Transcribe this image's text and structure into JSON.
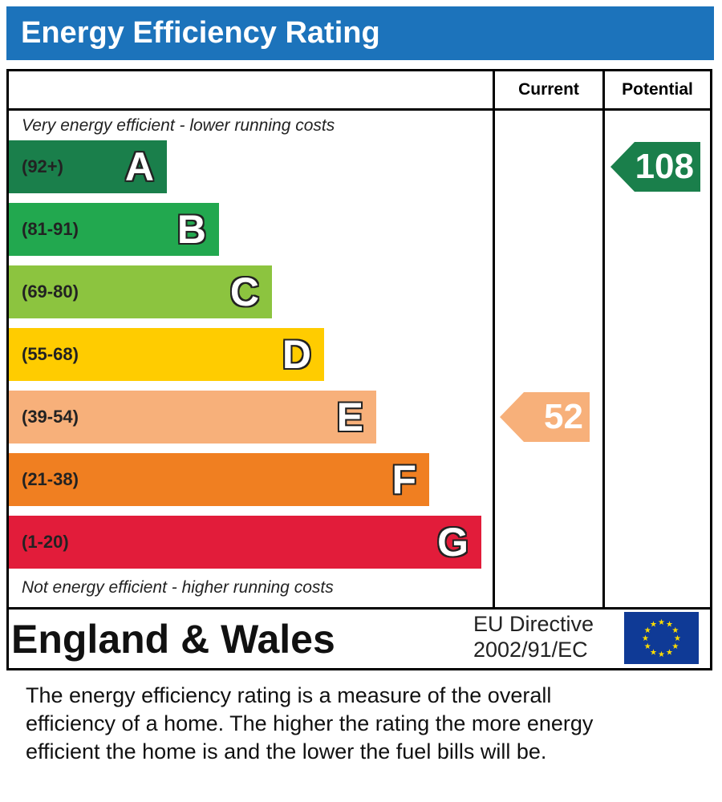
{
  "header": {
    "title": "Energy Efficiency Rating"
  },
  "columns": {
    "current": "Current",
    "potential": "Potential"
  },
  "notes": {
    "top": "Very energy efficient - lower running costs",
    "bottom": "Not energy efficient - higher running costs"
  },
  "bands": [
    {
      "range": "(92+)",
      "letter": "A",
      "color": "#1a7f4b"
    },
    {
      "range": "(81-91)",
      "letter": "B",
      "color": "#22a84f"
    },
    {
      "range": "(69-80)",
      "letter": "C",
      "color": "#8cc43f"
    },
    {
      "range": "(55-68)",
      "letter": "D",
      "color": "#ffcc00"
    },
    {
      "range": "(39-54)",
      "letter": "E",
      "color": "#f7b07a"
    },
    {
      "range": "(21-38)",
      "letter": "F",
      "color": "#f07f21"
    },
    {
      "range": "(1-20)",
      "letter": "G",
      "color": "#e21c3a"
    }
  ],
  "ratings": {
    "current": {
      "value": "52",
      "band": "E",
      "color": "#f7b07a"
    },
    "potential": {
      "value": "108",
      "band": "A",
      "color": "#1a7f4b"
    }
  },
  "footer": {
    "region": "England & Wales",
    "directive_line1": "EU Directive",
    "directive_line2": "2002/91/EC",
    "flag_icon": "eu-flag-icon"
  },
  "description": [
    "The energy efficiency rating is a measure of the overall",
    "efficiency of a home.  The higher the rating the more energy",
    "efficient the home is and the lower the fuel bills will be."
  ]
}
